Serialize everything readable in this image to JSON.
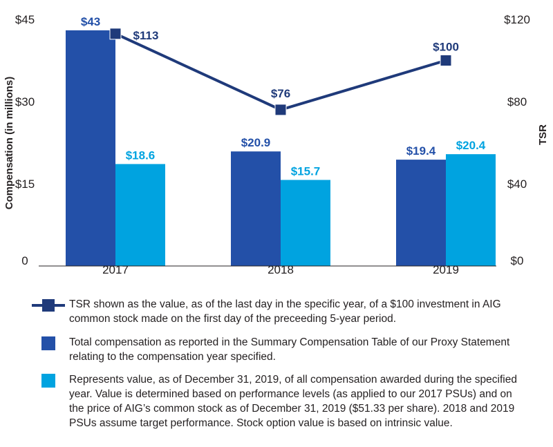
{
  "chart_data": {
    "type": "bar+line",
    "categories": [
      "2017",
      "2018",
      "2019"
    ],
    "series": [
      {
        "axis": "left",
        "type": "bar",
        "color": "#2350a8",
        "values": [
          43,
          20.9,
          19.4
        ],
        "labels": [
          "$43",
          "$20.9",
          "$19.4"
        ]
      },
      {
        "axis": "left",
        "type": "bar",
        "color": "#00a3e0",
        "values": [
          18.6,
          15.7,
          20.4
        ],
        "labels": [
          "$18.6",
          "$15.7",
          "$20.4"
        ]
      },
      {
        "axis": "right",
        "type": "line",
        "color": "#1f3a7a",
        "values": [
          113,
          76,
          100
        ],
        "labels": [
          "$113",
          "$76",
          "$100"
        ]
      }
    ],
    "left_axis": {
      "label": "Compensation (in millions)",
      "ylim": [
        0,
        45
      ],
      "ticks": [
        0,
        15,
        30,
        45
      ],
      "tick_labels": [
        "0",
        "$15",
        "$30",
        "$45"
      ]
    },
    "right_axis": {
      "label": "TSR",
      "ylim": [
        0,
        120
      ],
      "ticks": [
        0,
        40,
        80,
        120
      ],
      "tick_labels": [
        "$0",
        "$40",
        "$80",
        "$120"
      ]
    }
  },
  "legend": [
    {
      "marker": "line-square",
      "color": "#1f3a7a",
      "text": "TSR shown as the value, as of the last day in the specific year, of a $100 investment in AIG common stock made on the first day of the preceeding 5-year period."
    },
    {
      "marker": "square",
      "color": "#2350a8",
      "text": "Total compensation as reported in the Summary Compensation Table of our Proxy Statement relating to the compensation year specified."
    },
    {
      "marker": "square",
      "color": "#00a3e0",
      "text": "Represents value, as of December 31, 2019, of all compensation awarded during the specified year. Value is determined based on performance levels (as applied to our 2017 PSUs) and on the price of AIG’s common stock as of December 31, 2019 ($51.33 per share). 2018 and 2019 PSUs assume target performance. Stock option value is based on intrinsic value."
    }
  ]
}
